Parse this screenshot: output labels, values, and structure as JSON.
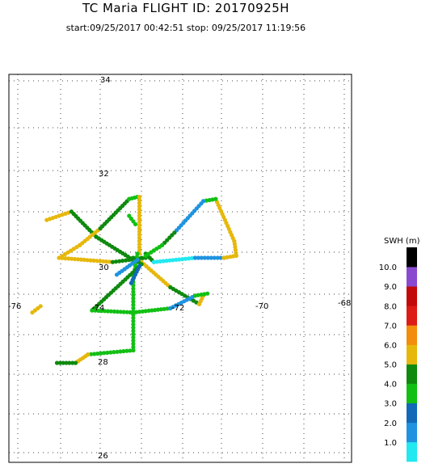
{
  "header": {
    "title": "TC Maria FLIGHT ID: 20170925H",
    "subtitle": "start:09/25/2017 00:42:51 stop: 09/25/2017 11:19:56"
  },
  "chart_data": {
    "type": "scatter",
    "title": "TC Maria FLIGHT ID: 20170925H",
    "xlabel": "",
    "ylabel": "",
    "xlim": [
      -76,
      -68
    ],
    "ylim": [
      26,
      34
    ],
    "grid": true,
    "x_ticks": [
      "-76",
      "-74",
      "-72",
      "-70",
      "-68"
    ],
    "y_ticks": [
      "34",
      "32",
      "30",
      "28",
      "26"
    ],
    "colorbar": {
      "title": "SWH (m)",
      "levels": [
        "1.0",
        "2.0",
        "3.0",
        "4.0",
        "5.0",
        "6.0",
        "7.0",
        "8.0",
        "9.0",
        "10.0"
      ],
      "colors": [
        "#22e8f0",
        "#1f93e0",
        "#1169b8",
        "#12c014",
        "#0e8a0e",
        "#e6b80c",
        "#f38d0e",
        "#dd1c16",
        "#c30a0a",
        "#8a4ad0",
        "#000000"
      ]
    },
    "tracks": [
      {
        "points": [
          [
            -75.2,
            31.4
          ],
          [
            -74.6,
            31.6
          ]
        ],
        "swh": 5.3
      },
      {
        "points": [
          [
            -74.6,
            31.6
          ],
          [
            -74.0,
            31.0
          ]
        ],
        "swh": 5.0
      },
      {
        "points": [
          [
            -74.0,
            31.0
          ],
          [
            -73.1,
            30.45
          ]
        ],
        "swh": 4.4
      },
      {
        "points": [
          [
            -73.1,
            30.45
          ],
          [
            -72.9,
            30.5
          ]
        ],
        "swh": 4.6
      },
      {
        "points": [
          [
            -74.9,
            30.5
          ],
          [
            -73.6,
            30.4
          ]
        ],
        "swh": 5.3
      },
      {
        "points": [
          [
            -73.6,
            30.4
          ],
          [
            -72.8,
            30.5
          ]
        ],
        "swh": 4.1
      },
      {
        "points": [
          [
            -74.9,
            30.5
          ],
          [
            -74.4,
            30.8
          ]
        ],
        "swh": 6.0
      },
      {
        "points": [
          [
            -74.4,
            30.8
          ],
          [
            -73.9,
            31.2
          ]
        ],
        "swh": 5.3
      },
      {
        "points": [
          [
            -73.9,
            31.2
          ],
          [
            -73.2,
            31.9
          ]
        ],
        "swh": 4.2
      },
      {
        "points": [
          [
            -73.2,
            31.9
          ],
          [
            -73.0,
            31.95
          ]
        ],
        "swh": 3.2
      },
      {
        "points": [
          [
            -72.95,
            31.95
          ],
          [
            -72.95,
            30.6
          ]
        ],
        "swh": 5.2
      },
      {
        "points": [
          [
            -73.0,
            30.6
          ],
          [
            -73.1,
            30.0
          ]
        ],
        "swh": 3.3
      },
      {
        "points": [
          [
            -73.1,
            30.0
          ],
          [
            -73.1,
            28.3
          ]
        ],
        "swh": 3.5
      },
      {
        "points": [
          [
            -73.1,
            28.3
          ],
          [
            -74.2,
            28.2
          ]
        ],
        "swh": 3.7
      },
      {
        "points": [
          [
            -74.2,
            28.2
          ],
          [
            -74.5,
            28.0
          ]
        ],
        "swh": 5.8
      },
      {
        "points": [
          [
            -74.5,
            28.0
          ],
          [
            -74.95,
            28.0
          ]
        ],
        "swh": 4.2
      },
      {
        "points": [
          [
            -73.2,
            31.5
          ],
          [
            -73.05,
            31.3
          ]
        ],
        "swh": 3.3
      },
      {
        "points": [
          [
            -72.8,
            30.6
          ],
          [
            -72.6,
            30.4
          ]
        ],
        "swh": 4.2
      },
      {
        "points": [
          [
            -72.6,
            30.4
          ],
          [
            -71.6,
            30.5
          ]
        ],
        "swh": 1.0
      },
      {
        "points": [
          [
            -71.6,
            30.5
          ],
          [
            -70.9,
            30.5
          ]
        ],
        "swh": 1.2
      },
      {
        "points": [
          [
            -70.9,
            30.5
          ],
          [
            -70.6,
            30.55
          ]
        ],
        "swh": 5.3
      },
      {
        "points": [
          [
            -70.6,
            30.55
          ],
          [
            -70.65,
            30.9
          ]
        ],
        "swh": 5.6
      },
      {
        "points": [
          [
            -70.65,
            30.9
          ],
          [
            -71.1,
            31.9
          ]
        ],
        "swh": 5.5
      },
      {
        "points": [
          [
            -71.1,
            31.9
          ],
          [
            -71.4,
            31.85
          ]
        ],
        "swh": 4.0
      },
      {
        "points": [
          [
            -71.4,
            31.85
          ],
          [
            -72.1,
            31.1
          ]
        ],
        "swh": 1.2
      },
      {
        "points": [
          [
            -72.1,
            31.1
          ],
          [
            -72.4,
            30.8
          ]
        ],
        "swh": 5.0
      },
      {
        "points": [
          [
            -72.4,
            30.8
          ],
          [
            -72.8,
            30.55
          ]
        ],
        "swh": 3.5
      },
      {
        "points": [
          [
            -72.9,
            30.4
          ],
          [
            -72.2,
            29.8
          ]
        ],
        "swh": 5.2
      },
      {
        "points": [
          [
            -72.2,
            29.8
          ],
          [
            -71.5,
            29.4
          ]
        ],
        "swh": 4.1
      },
      {
        "points": [
          [
            -71.5,
            29.4
          ],
          [
            -71.4,
            29.6
          ]
        ],
        "swh": 5.3
      },
      {
        "points": [
          [
            -72.9,
            30.35
          ],
          [
            -73.1,
            30.5
          ]
        ],
        "swh": 4.6
      },
      {
        "points": [
          [
            -72.95,
            30.3
          ],
          [
            -74.1,
            29.25
          ]
        ],
        "swh": 4.2
      },
      {
        "points": [
          [
            -74.1,
            29.25
          ],
          [
            -73.1,
            29.2
          ]
        ],
        "swh": 3.3
      },
      {
        "points": [
          [
            -73.1,
            29.2
          ],
          [
            -72.2,
            29.3
          ]
        ],
        "swh": 3.3
      },
      {
        "points": [
          [
            -72.2,
            29.3
          ],
          [
            -71.6,
            29.6
          ]
        ],
        "swh": 1.3
      },
      {
        "points": [
          [
            -71.6,
            29.6
          ],
          [
            -71.3,
            29.65
          ]
        ],
        "swh": 3.5
      },
      {
        "points": [
          [
            -73.5,
            30.1
          ],
          [
            -73.0,
            30.45
          ]
        ],
        "swh": 2.0
      },
      {
        "points": [
          [
            -73.15,
            29.9
          ],
          [
            -72.95,
            30.3
          ]
        ],
        "swh": 2.2
      },
      {
        "points": [
          [
            -75.55,
            29.2
          ],
          [
            -75.35,
            29.35
          ]
        ],
        "swh": 5.2
      }
    ]
  }
}
